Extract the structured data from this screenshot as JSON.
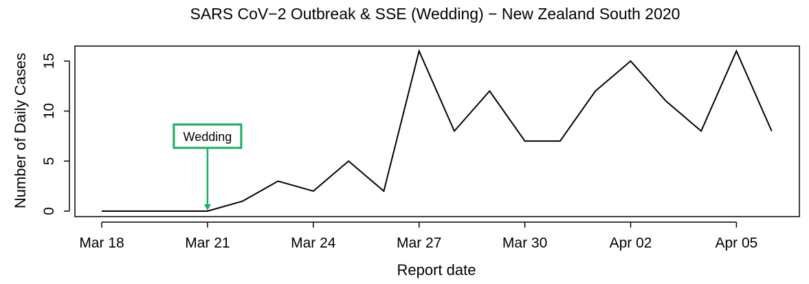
{
  "chart_data": {
    "type": "line",
    "title": "SARS CoV−2 Outbreak & SSE (Wedding) − New Zealand South 2020",
    "xlabel": "Report date",
    "ylabel": "Number of Daily Cases",
    "x": [
      "Mar 18",
      "Mar 19",
      "Mar 20",
      "Mar 21",
      "Mar 22",
      "Mar 23",
      "Mar 24",
      "Mar 25",
      "Mar 26",
      "Mar 27",
      "Mar 28",
      "Mar 29",
      "Mar 30",
      "Mar 31",
      "Apr 01",
      "Apr 02",
      "Apr 03",
      "Apr 04",
      "Apr 05",
      "Apr 06"
    ],
    "values": [
      0,
      0,
      0,
      0,
      1,
      3,
      2,
      5,
      2,
      16,
      8,
      12,
      7,
      7,
      12,
      15,
      11,
      8,
      16,
      8
    ],
    "x_tick_labels": [
      "Mar 18",
      "Mar 21",
      "Mar 24",
      "Mar 27",
      "Mar 30",
      "Apr 02",
      "Apr 05"
    ],
    "y_ticks": [
      0,
      5,
      10,
      15
    ],
    "ylim": [
      0,
      16
    ],
    "grid": false,
    "line_color": "#000000",
    "annotation": {
      "label": "Wedding",
      "x": "Mar 21",
      "y": 0,
      "color": "#1aaf5d"
    }
  }
}
